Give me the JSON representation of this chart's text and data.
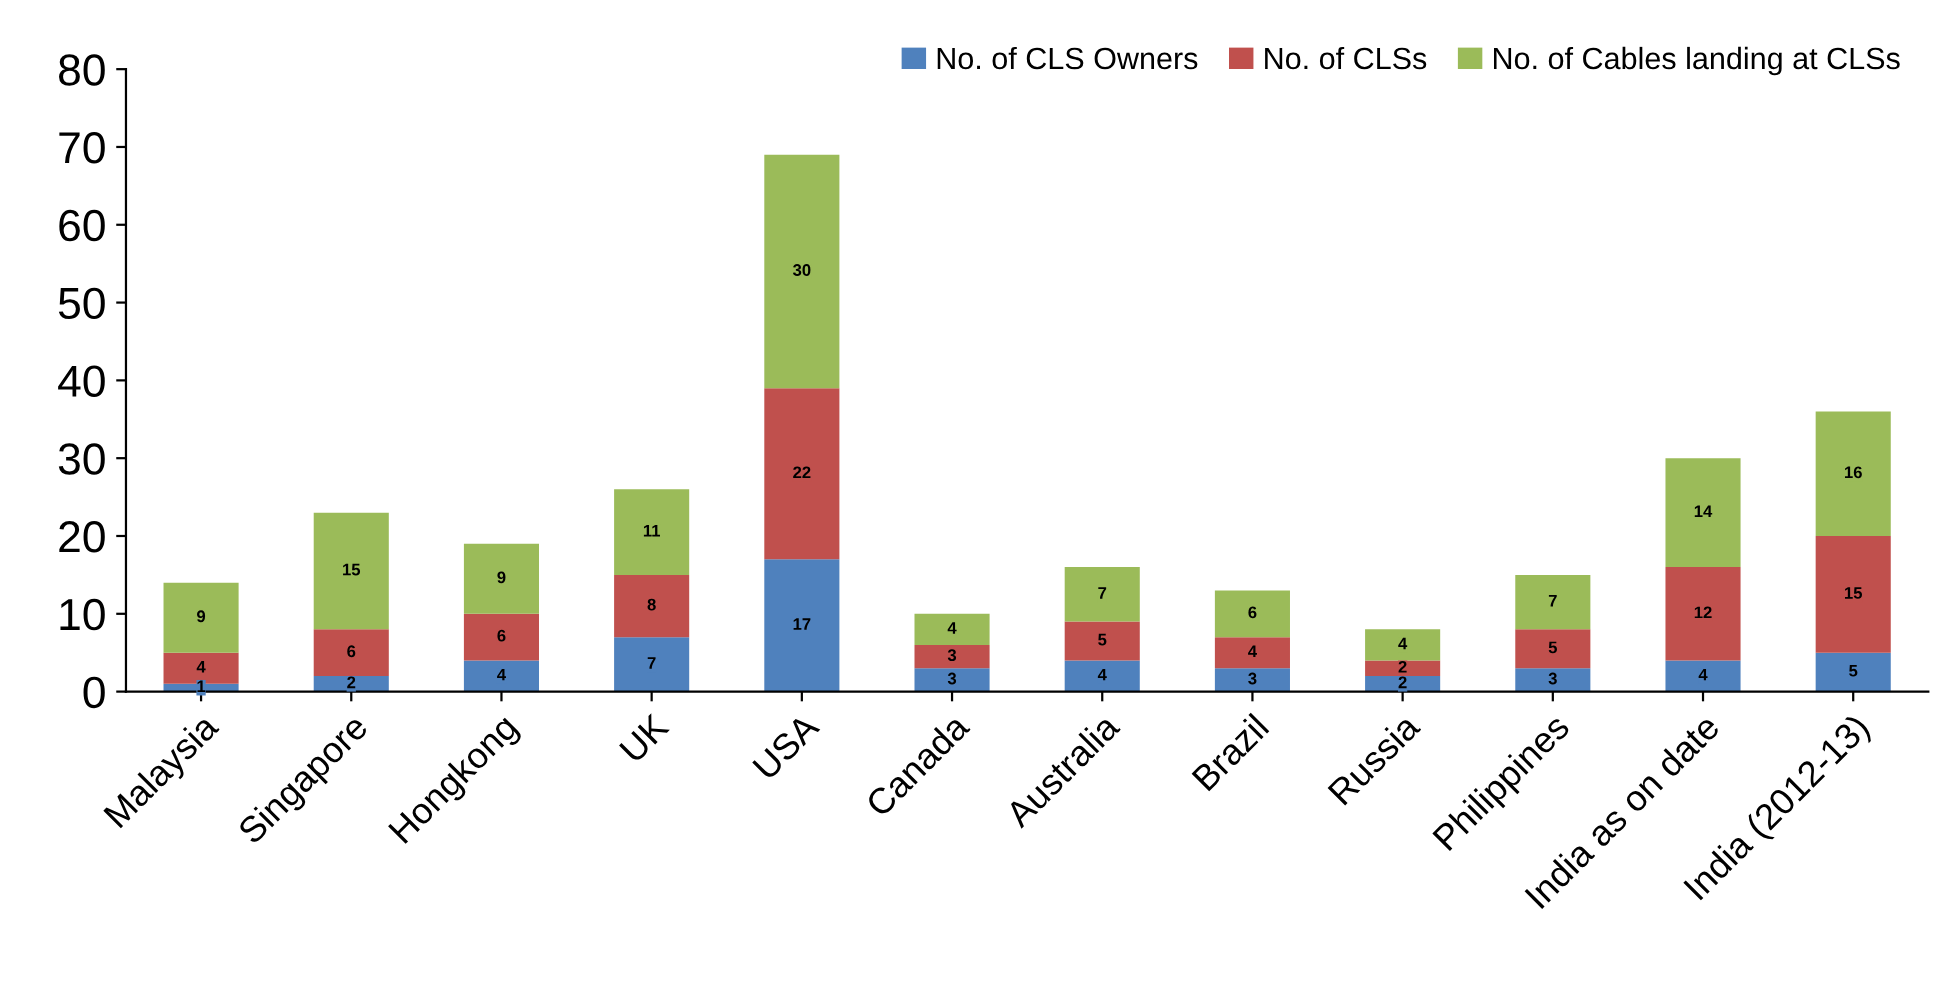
{
  "chart_data": {
    "type": "bar",
    "stacked": true,
    "categories": [
      "Malaysia",
      "Singapore",
      "Hongkong",
      "UK",
      "USA",
      "Canada",
      "Australia",
      "Brazil",
      "Russia",
      "Philippines",
      "India as on date",
      "India (2012-13)"
    ],
    "series": [
      {
        "name": "No. of CLS Owners",
        "color": "#4f81bd",
        "values": [
          1,
          2,
          4,
          7,
          17,
          3,
          4,
          3,
          2,
          3,
          4,
          5
        ]
      },
      {
        "name": "No. of CLSs",
        "color": "#c0504d",
        "values": [
          4,
          6,
          6,
          8,
          22,
          3,
          5,
          4,
          2,
          5,
          12,
          15
        ]
      },
      {
        "name": "No. of Cables landing at CLSs",
        "color": "#9bbb59",
        "values": [
          9,
          15,
          9,
          11,
          30,
          4,
          7,
          6,
          4,
          7,
          14,
          16
        ]
      }
    ],
    "ylim": [
      0,
      80
    ],
    "yticks": [
      0,
      10,
      20,
      30,
      40,
      50,
      60,
      70,
      80
    ],
    "data_labels": true,
    "legend": "top right",
    "grid": false
  }
}
